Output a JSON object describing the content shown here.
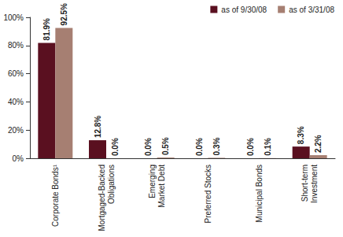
{
  "chart_data": {
    "type": "bar",
    "categories": [
      "Corporate Bonds¹",
      "Mortgaged-Backed Obligations",
      "Emerging Market Debt",
      "Preferred Stocks",
      "Municipal Bonds",
      "Short-term Investment"
    ],
    "series": [
      {
        "name": "as of 9/30/08",
        "color": "#5a1020",
        "values": [
          81.9,
          12.8,
          0.0,
          0.0,
          0.0,
          8.3
        ],
        "value_labels": [
          "81.9%",
          "12.8%",
          "0.0%",
          "0.0%",
          "0.0%",
          "8.3%"
        ]
      },
      {
        "name": "as of 3/31/08",
        "color": "#a67f72",
        "values": [
          92.5,
          0.0,
          0.5,
          0.3,
          0.1,
          2.2
        ],
        "value_labels": [
          "92.5%",
          "0.0%",
          "0.5%",
          "0.3%",
          "0.1%",
          "2.2%"
        ]
      }
    ],
    "ylim": [
      0,
      100
    ],
    "yticks": [
      {
        "value": 0,
        "label": "0%"
      },
      {
        "value": 20,
        "label": "20%"
      },
      {
        "value": 40,
        "label": "40%"
      },
      {
        "value": 60,
        "label": "60%"
      },
      {
        "value": 80,
        "label": "80%"
      },
      {
        "value": 100,
        "label": "100%"
      }
    ],
    "grid": false,
    "legend": "top-right",
    "data_labels": true
  }
}
